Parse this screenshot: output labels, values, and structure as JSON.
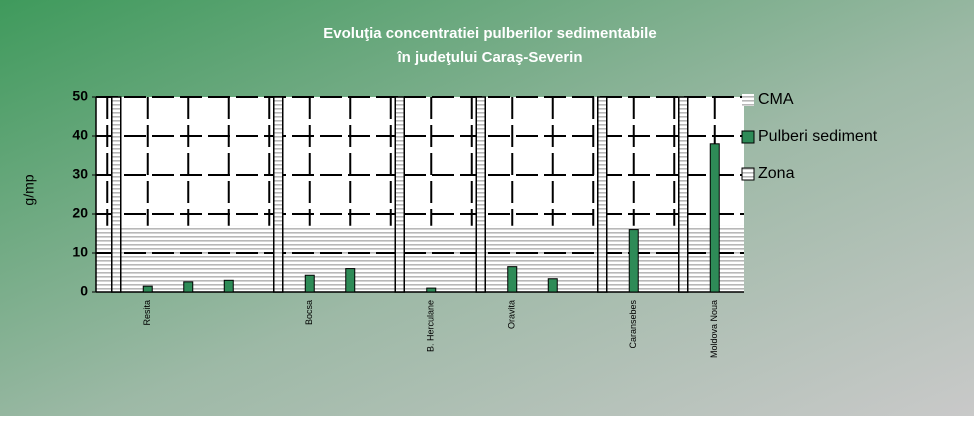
{
  "chart_data": {
    "type": "bar",
    "title": [
      "Evoluţia concentratiei  pulberilor sedimentabile",
      "în judeţului Caraş-Severin"
    ],
    "y_label": "g/mp",
    "categories": [
      null,
      "Resita",
      null,
      null,
      null,
      "Bocsa",
      null,
      null,
      "B. Herculane",
      null,
      "Oravita",
      null,
      null,
      "Caransebes",
      null,
      "Moldova Noua"
    ],
    "series": [
      {
        "name": "CMA",
        "color": "#c0c0c0",
        "kind": "area",
        "values": [
          17,
          17,
          17,
          17,
          17,
          17,
          17,
          17,
          17,
          17,
          17,
          17,
          17,
          17,
          17,
          17
        ]
      },
      {
        "name": "Pulberi sediment",
        "color": "#2e8b57",
        "kind": "bar",
        "values": [
          null,
          1.5,
          2.6,
          3,
          null,
          4.3,
          6,
          null,
          1,
          null,
          6.5,
          3.4,
          null,
          16,
          null,
          38
        ]
      },
      {
        "name": "Zona",
        "color": "#ffffff",
        "kind": "hatch",
        "values": [
          50,
          null,
          null,
          null,
          50,
          null,
          null,
          50,
          null,
          50,
          null,
          null,
          50,
          null,
          50,
          null
        ]
      }
    ],
    "ylim": [
      0,
      50
    ],
    "yticks": [
      0,
      10,
      20,
      30,
      40,
      50
    ],
    "grid": true,
    "legend": "right"
  }
}
